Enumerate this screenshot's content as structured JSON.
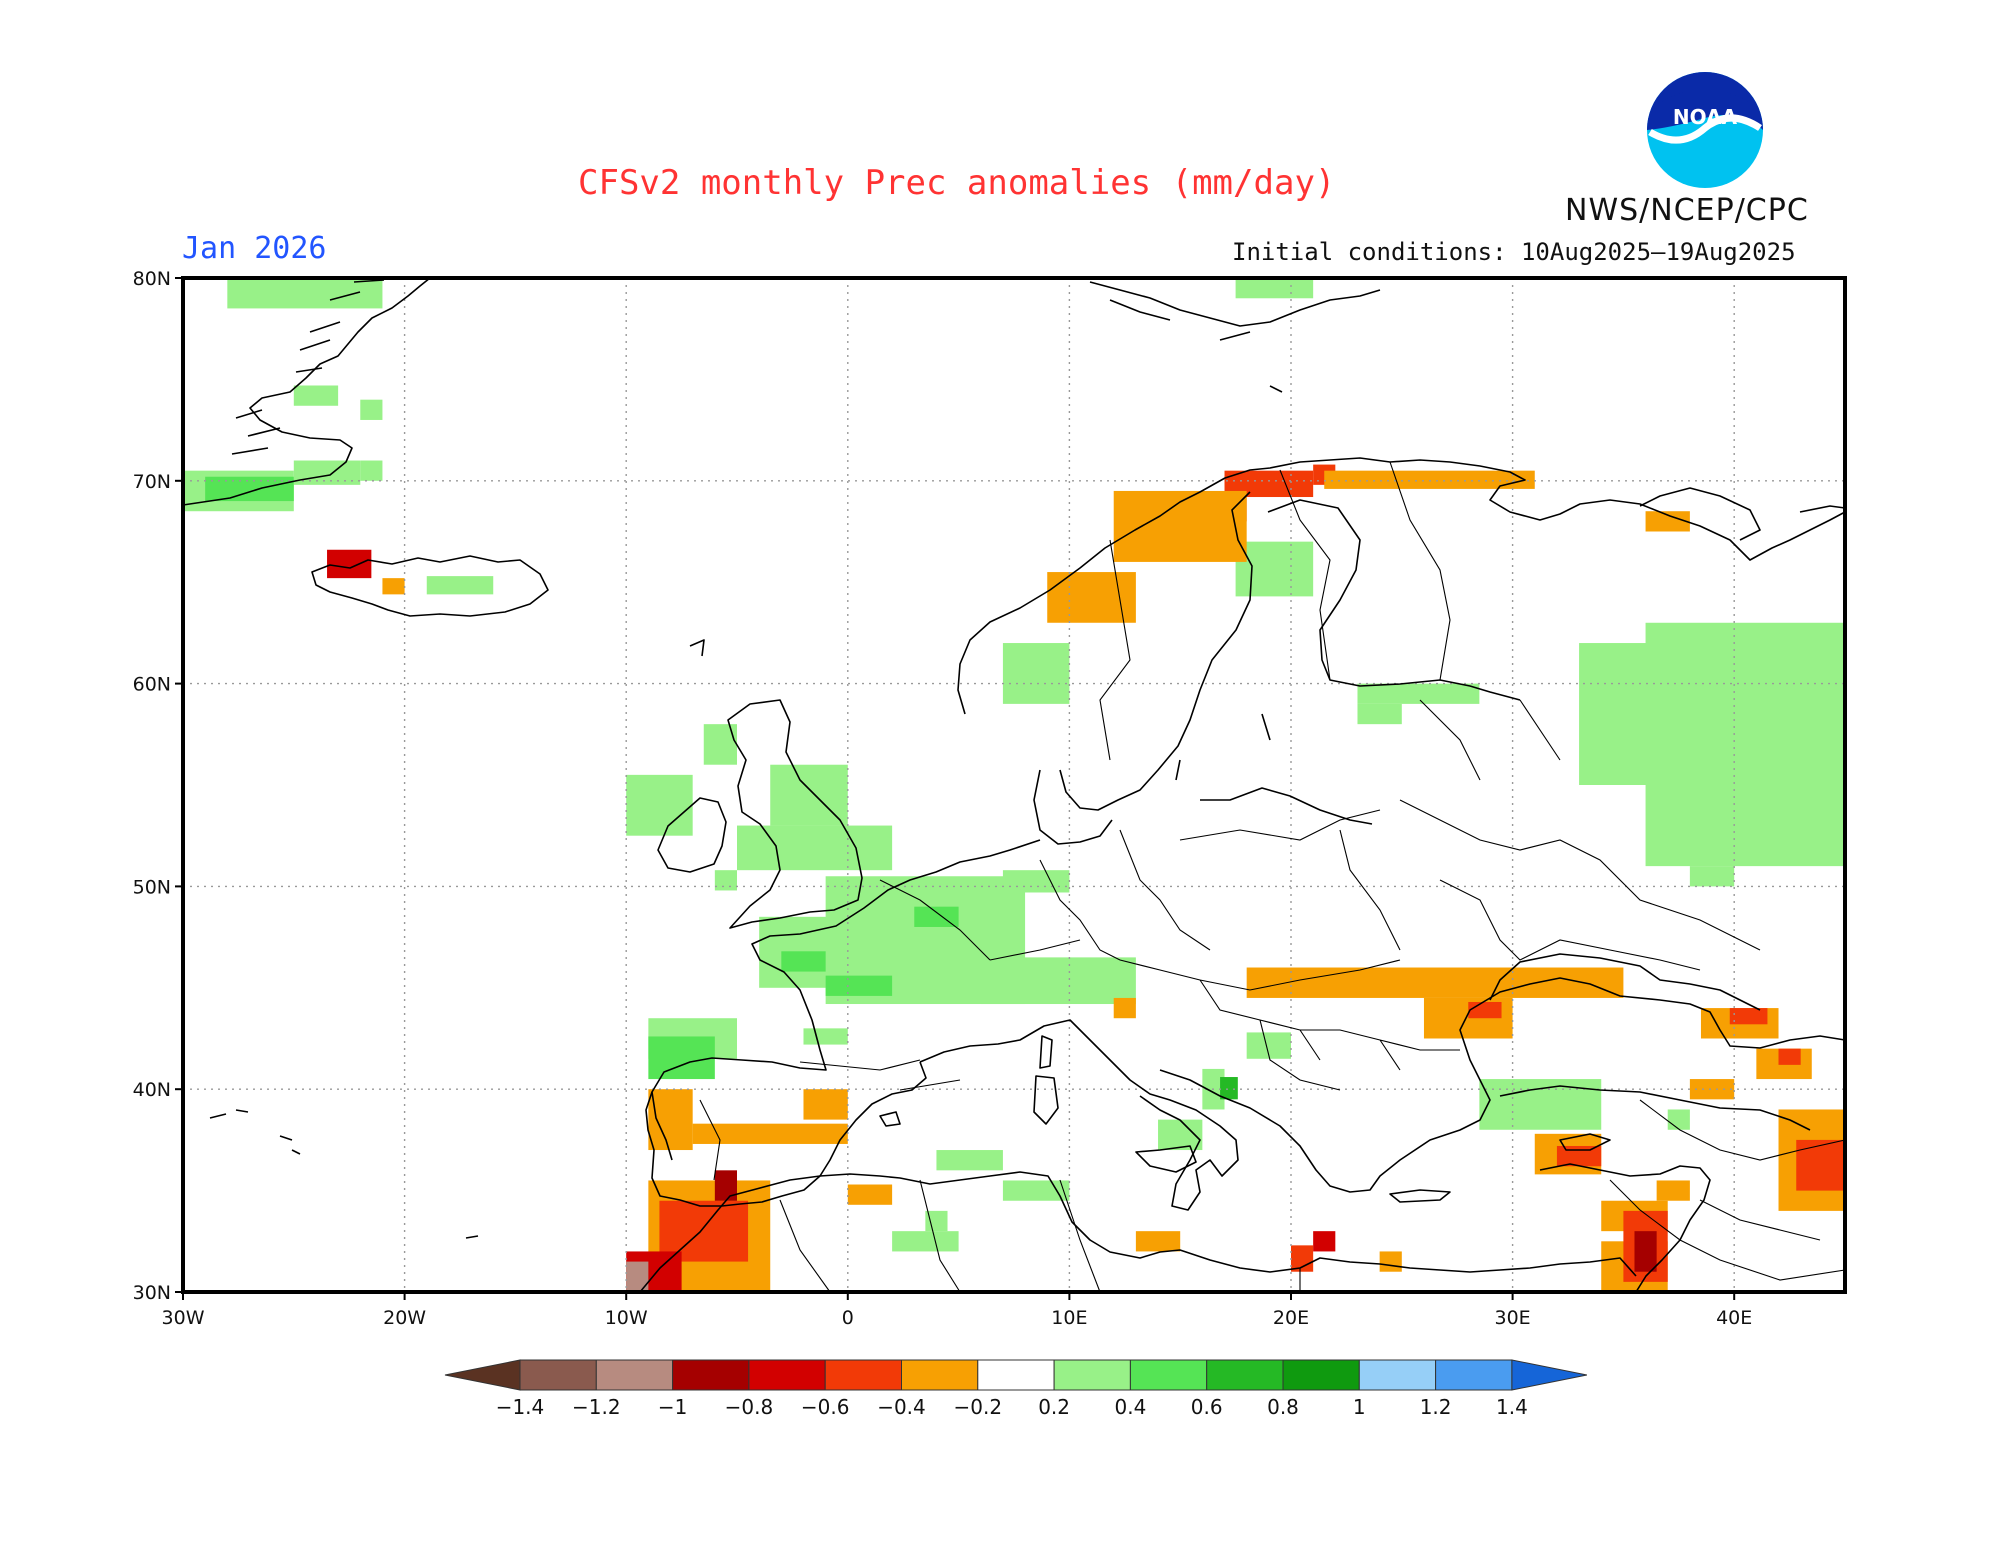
{
  "title": "CFSv2 monthly Prec anomalies (mm/day)",
  "forecast_month": "Jan 2026",
  "agency": "NWS/NCEP/CPC",
  "logo_text": "NOAA",
  "initial_conditions": "Initial conditions: 10Aug2025–19Aug2025",
  "map": {
    "lon_range": [
      -30,
      45
    ],
    "lat_range": [
      30,
      80
    ],
    "lon_ticks": [
      {
        "lon": -30,
        "label": "30W"
      },
      {
        "lon": -20,
        "label": "20W"
      },
      {
        "lon": -10,
        "label": "10W"
      },
      {
        "lon": 0,
        "label": "0"
      },
      {
        "lon": 10,
        "label": "10E"
      },
      {
        "lon": 20,
        "label": "20E"
      },
      {
        "lon": 30,
        "label": "30E"
      },
      {
        "lon": 40,
        "label": "40E"
      }
    ],
    "lat_ticks": [
      {
        "lat": 30,
        "label": "30N"
      },
      {
        "lat": 40,
        "label": "40N"
      },
      {
        "lat": 50,
        "label": "50N"
      },
      {
        "lat": 60,
        "label": "60N"
      },
      {
        "lat": 70,
        "label": "70N"
      },
      {
        "lat": 80,
        "label": "80N"
      }
    ],
    "anomaly_patches": [
      {
        "lon": [
          -28,
          -21
        ],
        "lat": [
          78.5,
          80
        ],
        "value": 0.3
      },
      {
        "lon": [
          -25,
          -23
        ],
        "lat": [
          73.7,
          74.7
        ],
        "value": 0.3
      },
      {
        "lon": [
          -22,
          -21
        ],
        "lat": [
          73,
          74
        ],
        "value": 0.3
      },
      {
        "lon": [
          -25,
          -22
        ],
        "lat": [
          69.8,
          71
        ],
        "value": 0.3
      },
      {
        "lon": [
          -22,
          -21
        ],
        "lat": [
          70,
          71
        ],
        "value": 0.3
      },
      {
        "lon": [
          -30,
          -25
        ],
        "lat": [
          68.5,
          70.5
        ],
        "value": 0.3
      },
      {
        "lon": [
          -29,
          -25
        ],
        "lat": [
          69,
          70.2
        ],
        "value": 0.5
      },
      {
        "lon": [
          -23.5,
          -21.5
        ],
        "lat": [
          65.2,
          66.6
        ],
        "value": -0.7
      },
      {
        "lon": [
          -21,
          -20
        ],
        "lat": [
          64.4,
          65.2
        ],
        "value": -0.3
      },
      {
        "lon": [
          -19,
          -16
        ],
        "lat": [
          64.4,
          65.3
        ],
        "value": 0.3
      },
      {
        "lon": [
          -10,
          -7
        ],
        "lat": [
          52.5,
          55.5
        ],
        "value": 0.3
      },
      {
        "lon": [
          -6.5,
          -5
        ],
        "lat": [
          56,
          58
        ],
        "value": 0.3
      },
      {
        "lon": [
          -3.5,
          0
        ],
        "lat": [
          53,
          56
        ],
        "value": 0.3
      },
      {
        "lon": [
          -5,
          2
        ],
        "lat": [
          50.8,
          53
        ],
        "value": 0.3
      },
      {
        "lon": [
          -6,
          -5
        ],
        "lat": [
          49.8,
          50.8
        ],
        "value": 0.3
      },
      {
        "lon": [
          -4,
          1
        ],
        "lat": [
          45,
          48.5
        ],
        "value": 0.3
      },
      {
        "lon": [
          -1,
          8
        ],
        "lat": [
          44.2,
          50.5
        ],
        "value": 0.3
      },
      {
        "lon": [
          3,
          5
        ],
        "lat": [
          48,
          49
        ],
        "value": 0.5
      },
      {
        "lon": [
          -1,
          2
        ],
        "lat": [
          44.6,
          45.6
        ],
        "value": 0.5
      },
      {
        "lon": [
          -3,
          -1
        ],
        "lat": [
          45.8,
          46.8
        ],
        "value": 0.5
      },
      {
        "lon": [
          7,
          10
        ],
        "lat": [
          49.7,
          50.8
        ],
        "value": 0.3
      },
      {
        "lon": [
          6,
          13
        ],
        "lat": [
          44.2,
          46.5
        ],
        "value": 0.3
      },
      {
        "lon": [
          -9,
          -5
        ],
        "lat": [
          41.5,
          43.5
        ],
        "value": 0.3
      },
      {
        "lon": [
          -9,
          -6
        ],
        "lat": [
          40.5,
          42.6
        ],
        "value": 0.5
      },
      {
        "lon": [
          -2,
          0
        ],
        "lat": [
          42.2,
          43
        ],
        "value": 0.3
      },
      {
        "lon": [
          7,
          10
        ],
        "lat": [
          34.5,
          35.5
        ],
        "value": 0.3
      },
      {
        "lon": [
          4,
          7
        ],
        "lat": [
          36,
          37
        ],
        "value": 0.3
      },
      {
        "lon": [
          2,
          5
        ],
        "lat": [
          32,
          33
        ],
        "value": 0.3
      },
      {
        "lon": [
          3.5,
          4.5
        ],
        "lat": [
          33,
          34
        ],
        "value": 0.3
      },
      {
        "lon": [
          14,
          16
        ],
        "lat": [
          37,
          38.5
        ],
        "value": 0.3
      },
      {
        "lon": [
          16,
          17
        ],
        "lat": [
          39,
          41
        ],
        "value": 0.3
      },
      {
        "lon": [
          16.8,
          17.6
        ],
        "lat": [
          39.5,
          40.6
        ],
        "value": 0.6
      },
      {
        "lon": [
          18,
          20
        ],
        "lat": [
          41.5,
          42.8
        ],
        "value": 0.3
      },
      {
        "lon": [
          7,
          10
        ],
        "lat": [
          59,
          62
        ],
        "value": 0.3
      },
      {
        "lon": [
          17.5,
          21
        ],
        "lat": [
          64.3,
          67
        ],
        "value": 0.3
      },
      {
        "lon": [
          17.5,
          21
        ],
        "lat": [
          79,
          80
        ],
        "value": 0.3
      },
      {
        "lon": [
          23,
          28.5
        ],
        "lat": [
          59,
          60
        ],
        "value": 0.3
      },
      {
        "lon": [
          23,
          25
        ],
        "lat": [
          58,
          59
        ],
        "value": 0.3
      },
      {
        "lon": [
          33,
          45
        ],
        "lat": [
          55,
          62
        ],
        "value": 0.3
      },
      {
        "lon": [
          36,
          45
        ],
        "lat": [
          51,
          63
        ],
        "value": 0.3
      },
      {
        "lon": [
          38,
          40
        ],
        "lat": [
          50,
          51
        ],
        "value": 0.3
      },
      {
        "lon": [
          28.5,
          34
        ],
        "lat": [
          38,
          40.5
        ],
        "value": 0.3
      },
      {
        "lon": [
          37,
          38
        ],
        "lat": [
          38,
          39
        ],
        "value": 0.3
      },
      {
        "lon": [
          21,
          22
        ],
        "lat": [
          69.8,
          70.8
        ],
        "value": -0.5
      },
      {
        "lon": [
          17,
          21
        ],
        "lat": [
          69.2,
          70.5
        ],
        "value": -0.5
      },
      {
        "lon": [
          15,
          18
        ],
        "lat": [
          68,
          69.3
        ],
        "value": -0.5
      },
      {
        "lon": [
          21.5,
          31
        ],
        "lat": [
          69.6,
          70.5
        ],
        "value": -0.3
      },
      {
        "lon": [
          12,
          18
        ],
        "lat": [
          66,
          69.5
        ],
        "value": -0.3
      },
      {
        "lon": [
          9,
          13
        ],
        "lat": [
          63,
          65.5
        ],
        "value": -0.3
      },
      {
        "lon": [
          36,
          38
        ],
        "lat": [
          67.5,
          68.5
        ],
        "value": -0.3
      },
      {
        "lon": [
          18,
          35
        ],
        "lat": [
          44.5,
          46
        ],
        "value": -0.3
      },
      {
        "lon": [
          26,
          30
        ],
        "lat": [
          42.5,
          44.5
        ],
        "value": -0.3
      },
      {
        "lon": [
          28,
          29.5
        ],
        "lat": [
          43.5,
          44.3
        ],
        "value": -0.5
      },
      {
        "lon": [
          12,
          13
        ],
        "lat": [
          43.5,
          44.5
        ],
        "value": -0.3
      },
      {
        "lon": [
          38.5,
          42
        ],
        "lat": [
          42.5,
          44
        ],
        "value": -0.3
      },
      {
        "lon": [
          39.8,
          41.5
        ],
        "lat": [
          43.2,
          44
        ],
        "value": -0.5
      },
      {
        "lon": [
          41,
          43.5
        ],
        "lat": [
          40.5,
          42
        ],
        "value": -0.3
      },
      {
        "lon": [
          42,
          43
        ],
        "lat": [
          41.2,
          42
        ],
        "value": -0.5
      },
      {
        "lon": [
          38,
          40
        ],
        "lat": [
          39.5,
          40.5
        ],
        "value": -0.3
      },
      {
        "lon": [
          42,
          45
        ],
        "lat": [
          34,
          39
        ],
        "value": -0.3
      },
      {
        "lon": [
          42.8,
          45
        ],
        "lat": [
          35,
          37.5
        ],
        "value": -0.5
      },
      {
        "lon": [
          31,
          34
        ],
        "lat": [
          35.8,
          37.8
        ],
        "value": -0.3
      },
      {
        "lon": [
          32,
          34
        ],
        "lat": [
          36.2,
          37.2
        ],
        "value": -0.5
      },
      {
        "lon": [
          36.5,
          38
        ],
        "lat": [
          34.5,
          35.5
        ],
        "value": -0.3
      },
      {
        "lon": [
          34,
          37
        ],
        "lat": [
          33,
          34.5
        ],
        "value": -0.3
      },
      {
        "lon": [
          34,
          37
        ],
        "lat": [
          30,
          32.5
        ],
        "value": -0.3
      },
      {
        "lon": [
          35,
          37
        ],
        "lat": [
          30.5,
          34
        ],
        "value": -0.5
      },
      {
        "lon": [
          35.5,
          36.5
        ],
        "lat": [
          31,
          33
        ],
        "value": -0.9
      },
      {
        "lon": [
          13,
          15
        ],
        "lat": [
          32,
          33
        ],
        "value": -0.3
      },
      {
        "lon": [
          20,
          21
        ],
        "lat": [
          31,
          32.3
        ],
        "value": -0.5
      },
      {
        "lon": [
          21,
          22
        ],
        "lat": [
          32,
          33
        ],
        "value": -0.7
      },
      {
        "lon": [
          24,
          25
        ],
        "lat": [
          31,
          32
        ],
        "value": -0.3
      },
      {
        "lon": [
          -7,
          0
        ],
        "lat": [
          37.3,
          38.3
        ],
        "value": -0.3
      },
      {
        "lon": [
          -9,
          -7
        ],
        "lat": [
          37,
          40
        ],
        "value": -0.3
      },
      {
        "lon": [
          -2,
          0
        ],
        "lat": [
          38.5,
          40
        ],
        "value": -0.3
      },
      {
        "lon": [
          0,
          2
        ],
        "lat": [
          34.3,
          35.3
        ],
        "value": -0.3
      },
      {
        "lon": [
          -9,
          -3.5
        ],
        "lat": [
          30,
          35.5
        ],
        "value": -0.3
      },
      {
        "lon": [
          -8.5,
          -4.5
        ],
        "lat": [
          31.5,
          34.5
        ],
        "value": -0.5
      },
      {
        "lon": [
          -6,
          -5
        ],
        "lat": [
          34.5,
          36
        ],
        "value": -0.9
      },
      {
        "lon": [
          -10,
          -7.5
        ],
        "lat": [
          30,
          32
        ],
        "value": -0.7
      },
      {
        "lon": [
          -10,
          -9
        ],
        "lat": [
          30,
          31.5
        ],
        "value": -1.1
      }
    ]
  },
  "colorbar": {
    "bins": [
      {
        "color": "#8a5a4e"
      },
      {
        "color": "#b78b80"
      },
      {
        "color": "#a50000"
      },
      {
        "color": "#d20000"
      },
      {
        "color": "#f23a07"
      },
      {
        "color": "#f7a003"
      },
      {
        "color": "#ffffff"
      },
      {
        "color": "#98f188"
      },
      {
        "color": "#55e455"
      },
      {
        "color": "#25b925"
      },
      {
        "color": "#0f9a0f"
      },
      {
        "color": "#96cff7"
      },
      {
        "color": "#4a9cf0"
      }
    ],
    "low_arrow_color": "#5a3222",
    "high_arrow_color": "#1565d8",
    "labels": [
      "−1.4",
      "−1.2",
      "−1",
      "−0.8",
      "−0.6",
      "−0.4",
      "−0.2",
      "0.2",
      "0.4",
      "0.6",
      "0.8",
      "1",
      "1.2",
      "1.4"
    ]
  }
}
